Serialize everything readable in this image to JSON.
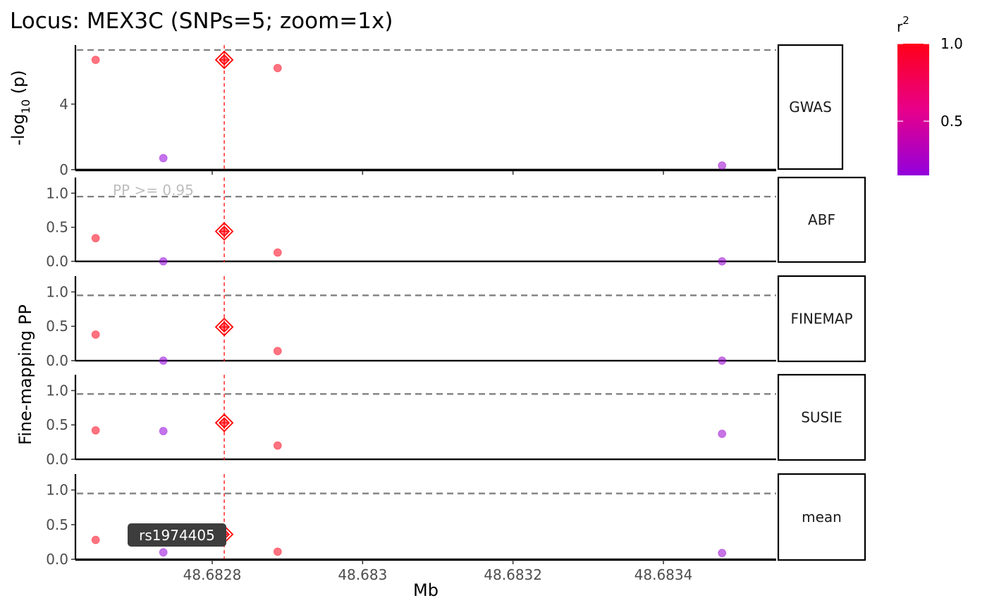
{
  "chart_data": {
    "type": "scatter",
    "title": "Locus: MEX3C   (SNPs=5; zoom=1x)",
    "xlabel": "Mb",
    "x_ticks": [
      48.6828,
      48.683,
      48.6832,
      48.6834
    ],
    "x_tick_labels": [
      "48.6828",
      "48.683",
      "48.6832",
      "48.6834"
    ],
    "xlim": [
      48.68262,
      48.68355
    ],
    "lead_snp": {
      "x": 48.682816,
      "label": "rs1974405"
    },
    "legend": {
      "title": "r2",
      "ticks": [
        1.0,
        0.5
      ],
      "tick_labels": [
        "1.0",
        "0.5"
      ],
      "range": [
        0.15,
        1.0
      ],
      "color_low": "#9300DC",
      "color_high": "#FF0000"
    },
    "panels": [
      {
        "strip": "GWAS",
        "ylabel_main": "-log",
        "ylabel_sub": "10",
        "ylabel_tail": " (p)",
        "ylim": [
          -0.05,
          7.6
        ],
        "yticks": [
          0,
          4
        ],
        "ytick_labels": [
          "0",
          "4"
        ],
        "threshold": 7.3,
        "annotation": "",
        "points": [
          {
            "x": 48.682645,
            "y": 6.7,
            "r2": 1.0
          },
          {
            "x": 48.682735,
            "y": 0.7,
            "r2": 0.15
          },
          {
            "x": 48.682816,
            "y": 6.7,
            "r2": 1.0,
            "lead": true
          },
          {
            "x": 48.682887,
            "y": 6.2,
            "r2": 1.0
          },
          {
            "x": 48.683478,
            "y": 0.25,
            "r2": 0.2
          }
        ]
      },
      {
        "strip": "ABF",
        "ylim": [
          -0.01,
          1.23
        ],
        "yticks": [
          0.0,
          0.5,
          1.0
        ],
        "ytick_labels": [
          "0.0",
          "0.5",
          "1.0"
        ],
        "threshold": 0.95,
        "annotation": "PP >= 0.95",
        "points": [
          {
            "x": 48.682645,
            "y": 0.34,
            "r2": 1.0
          },
          {
            "x": 48.682735,
            "y": 0.0,
            "r2": 0.15
          },
          {
            "x": 48.682816,
            "y": 0.44,
            "r2": 1.0,
            "lead": true
          },
          {
            "x": 48.682887,
            "y": 0.13,
            "r2": 1.0
          },
          {
            "x": 48.683478,
            "y": 0.0,
            "r2": 0.2
          }
        ]
      },
      {
        "strip": "FINEMAP",
        "ylim": [
          -0.01,
          1.23
        ],
        "yticks": [
          0.0,
          0.5,
          1.0
        ],
        "ytick_labels": [
          "0.0",
          "0.5",
          "1.0"
        ],
        "threshold": 0.95,
        "annotation": "",
        "points": [
          {
            "x": 48.682645,
            "y": 0.38,
            "r2": 1.0
          },
          {
            "x": 48.682735,
            "y": 0.0,
            "r2": 0.15
          },
          {
            "x": 48.682816,
            "y": 0.49,
            "r2": 1.0,
            "lead": true
          },
          {
            "x": 48.682887,
            "y": 0.14,
            "r2": 1.0
          },
          {
            "x": 48.683478,
            "y": 0.0,
            "r2": 0.2
          }
        ]
      },
      {
        "strip": "SUSIE",
        "ylim": [
          -0.01,
          1.23
        ],
        "yticks": [
          0.0,
          0.5,
          1.0
        ],
        "ytick_labels": [
          "0.0",
          "0.5",
          "1.0"
        ],
        "threshold": 0.95,
        "annotation": "",
        "points": [
          {
            "x": 48.682645,
            "y": 0.42,
            "r2": 1.0
          },
          {
            "x": 48.682735,
            "y": 0.41,
            "r2": 0.15
          },
          {
            "x": 48.682816,
            "y": 0.53,
            "r2": 1.0,
            "lead": true
          },
          {
            "x": 48.682887,
            "y": 0.2,
            "r2": 1.0
          },
          {
            "x": 48.683478,
            "y": 0.37,
            "r2": 0.2
          }
        ]
      },
      {
        "strip": "mean",
        "ylim": [
          -0.01,
          1.23
        ],
        "yticks": [
          0.0,
          0.5,
          1.0
        ],
        "ytick_labels": [
          "0.0",
          "0.5",
          "1.0"
        ],
        "threshold": 0.95,
        "annotation": "",
        "points": [
          {
            "x": 48.682645,
            "y": 0.28,
            "r2": 1.0
          },
          {
            "x": 48.682735,
            "y": 0.1,
            "r2": 0.15
          },
          {
            "x": 48.682816,
            "y": 0.36,
            "r2": 1.0,
            "lead": true
          },
          {
            "x": 48.682887,
            "y": 0.11,
            "r2": 1.0
          },
          {
            "x": 48.683478,
            "y": 0.09,
            "r2": 0.2
          }
        ]
      }
    ],
    "shared_ylabel": "Fine-mapping PP"
  }
}
